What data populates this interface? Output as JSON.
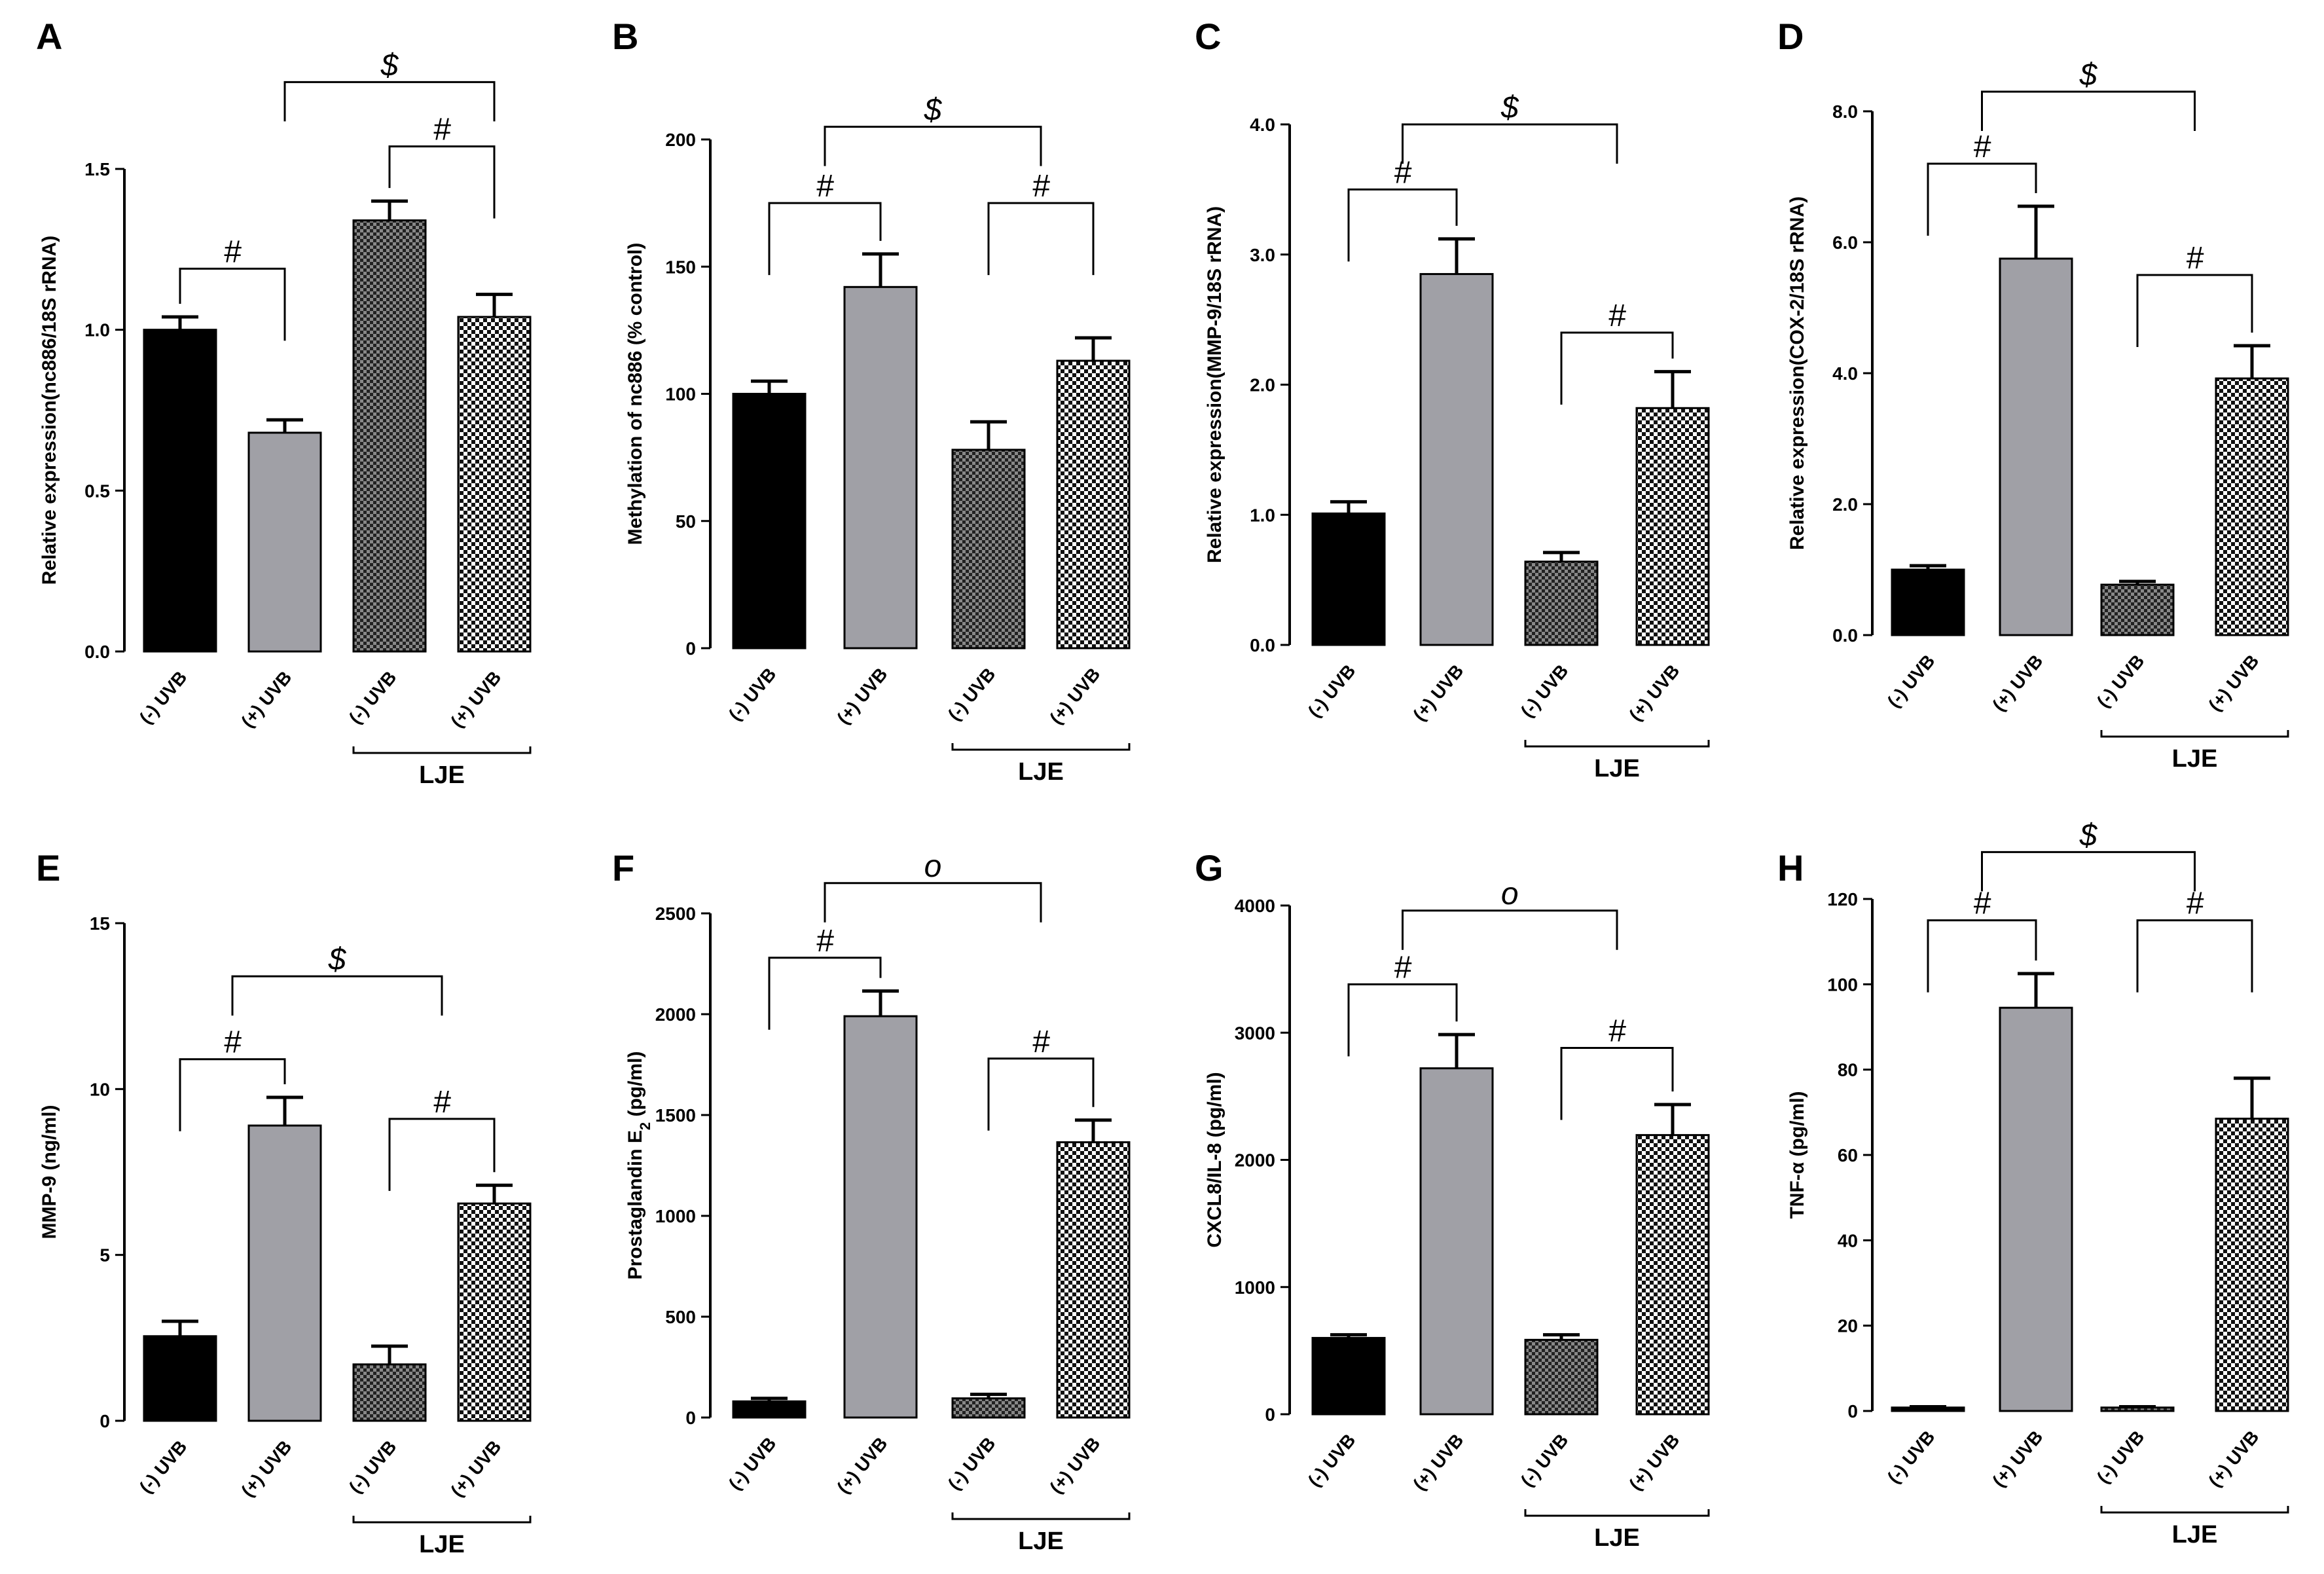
{
  "colors": {
    "black": "#000000",
    "gray": "#a0a0a6"
  },
  "chart_data": [
    {
      "letter": "A",
      "type": "bar",
      "ylabel": "Relative expression(nc886/18S rRNA)",
      "yticks": [
        "0.0",
        "0.5",
        "1.0",
        "1.5"
      ],
      "ylim": [
        0,
        1.5
      ],
      "categories": [
        "(-) UVB",
        "(+) UVB",
        "(-) UVB",
        "(+) UVB"
      ],
      "values": [
        1.0,
        0.68,
        1.34,
        1.04
      ],
      "errors": [
        0.04,
        0.04,
        0.06,
        0.07
      ],
      "group_label": "LJE",
      "annotations": [
        {
          "bars": [
            0,
            1
          ],
          "label": "#",
          "y": 1.19
        },
        {
          "bars": [
            2,
            3
          ],
          "label": "#",
          "y": 1.57
        },
        {
          "bars": [
            1,
            3
          ],
          "label": "$",
          "y": 1.77
        }
      ]
    },
    {
      "letter": "B",
      "type": "bar",
      "ylabel": "Methylation of nc886 (% control)",
      "yticks": [
        "0",
        "50",
        "100",
        "150",
        "200"
      ],
      "ylim": [
        0,
        200
      ],
      "categories": [
        "(-) UVB",
        "(+) UVB",
        "(-) UVB",
        "(+) UVB"
      ],
      "values": [
        100,
        142,
        78,
        113
      ],
      "errors": [
        5,
        13,
        11,
        9
      ],
      "group_label": "LJE",
      "annotations": [
        {
          "bars": [
            0,
            1
          ],
          "label": "#",
          "y": 175
        },
        {
          "bars": [
            2,
            3
          ],
          "label": "#",
          "y": 175
        },
        {
          "bars": [
            0.5,
            2.5
          ],
          "label": "$",
          "y": 205
        }
      ]
    },
    {
      "letter": "C",
      "type": "bar",
      "ylabel": "Relative expression(MMP-9/18S rRNA)",
      "yticks": [
        "0.0",
        "1.0",
        "2.0",
        "3.0",
        "4.0"
      ],
      "ylim": [
        0,
        4
      ],
      "categories": [
        "(-) UVB",
        "(+) UVB",
        "(-) UVB",
        "(+) UVB"
      ],
      "values": [
        1.01,
        2.85,
        0.64,
        1.82
      ],
      "errors": [
        0.09,
        0.27,
        0.07,
        0.28
      ],
      "group_label": "LJE",
      "annotations": [
        {
          "bars": [
            0,
            1
          ],
          "label": "#",
          "y": 3.5
        },
        {
          "bars": [
            2,
            3
          ],
          "label": "#",
          "y": 2.4
        },
        {
          "bars": [
            0.5,
            2.5
          ],
          "label": "$",
          "y": 4.0
        }
      ]
    },
    {
      "letter": "D",
      "type": "bar",
      "ylabel": "Relative expression(COX-2/18S rRNA)",
      "yticks": [
        "0.0",
        "2.0",
        "4.0",
        "6.0",
        "8.0"
      ],
      "ylim": [
        0,
        8
      ],
      "categories": [
        "(-) UVB",
        "(+) UVB",
        "(-) UVB",
        "(+) UVB"
      ],
      "values": [
        1.0,
        5.75,
        0.77,
        3.92
      ],
      "errors": [
        0.06,
        0.8,
        0.05,
        0.5
      ],
      "group_label": "LJE",
      "annotations": [
        {
          "bars": [
            0,
            1
          ],
          "label": "#",
          "y": 7.2
        },
        {
          "bars": [
            2,
            3
          ],
          "label": "#",
          "y": 5.5
        },
        {
          "bars": [
            0.5,
            2.5
          ],
          "label": "$",
          "y": 8.3
        }
      ]
    },
    {
      "letter": "E",
      "type": "bar",
      "ylabel": "MMP-9 (ng/ml)",
      "yticks": [
        "0",
        "5",
        "10",
        "15"
      ],
      "ylim": [
        0,
        15
      ],
      "categories": [
        "(-) UVB",
        "(+) UVB",
        "(-) UVB",
        "(+) UVB"
      ],
      "values": [
        2.55,
        8.9,
        1.7,
        6.55
      ],
      "errors": [
        0.45,
        0.85,
        0.55,
        0.55
      ],
      "group_label": "LJE",
      "annotations": [
        {
          "bars": [
            0,
            1
          ],
          "label": "#",
          "y": 10.9
        },
        {
          "bars": [
            2,
            3
          ],
          "label": "#",
          "y": 9.1
        },
        {
          "bars": [
            0.5,
            2.5
          ],
          "label": "$",
          "y": 13.4
        }
      ]
    },
    {
      "letter": "F",
      "type": "bar",
      "ylabel": "Prostaglandin E",
      "ylabel_sub": "2",
      "ylabel_tail": " (pg/ml)",
      "yticks": [
        "0",
        "500",
        "1000",
        "1500",
        "2000",
        "2500"
      ],
      "ylim": [
        0,
        2500
      ],
      "categories": [
        "(-) UVB",
        "(+) UVB",
        "(-) UVB",
        "(+) UVB"
      ],
      "values": [
        80,
        1990,
        95,
        1365
      ],
      "errors": [
        15,
        125,
        20,
        110
      ],
      "group_label": "LJE",
      "annotations": [
        {
          "bars": [
            0,
            1
          ],
          "label": "#",
          "y": 2280
        },
        {
          "bars": [
            2,
            3
          ],
          "label": "#",
          "y": 1780
        },
        {
          "bars": [
            0.5,
            2.5
          ],
          "label": "o",
          "y": 2650
        }
      ]
    },
    {
      "letter": "G",
      "type": "bar",
      "ylabel": "CXCL8/IL-8 (pg/ml)",
      "yticks": [
        "0",
        "1000",
        "2000",
        "3000",
        "4000"
      ],
      "ylim": [
        0,
        4000
      ],
      "categories": [
        "(-) UVB",
        "(+) UVB",
        "(-) UVB",
        "(+) UVB"
      ],
      "values": [
        600,
        2720,
        585,
        2195
      ],
      "errors": [
        25,
        265,
        40,
        240
      ],
      "group_label": "LJE",
      "annotations": [
        {
          "bars": [
            0,
            1
          ],
          "label": "#",
          "y": 3380
        },
        {
          "bars": [
            2,
            3
          ],
          "label": "#",
          "y": 2880
        },
        {
          "bars": [
            0.5,
            2.5
          ],
          "label": "o",
          "y": 3960
        }
      ]
    },
    {
      "letter": "H",
      "type": "bar",
      "ylabel": "TNF-α (pg/ml)",
      "yticks": [
        "0",
        "20",
        "40",
        "60",
        "80",
        "100",
        "120"
      ],
      "ylim": [
        0,
        120
      ],
      "categories": [
        "(-) UVB",
        "(+) UVB",
        "(-) UVB",
        "(+) UVB"
      ],
      "values": [
        0.8,
        94.5,
        0.8,
        68.5
      ],
      "errors": [
        0.2,
        8,
        0.2,
        9.5
      ],
      "group_label": "LJE",
      "annotations": [
        {
          "bars": [
            0,
            1
          ],
          "label": "#",
          "y": 115
        },
        {
          "bars": [
            2,
            3
          ],
          "label": "#",
          "y": 115
        },
        {
          "bars": [
            0.5,
            2.5
          ],
          "label": "$",
          "y": 131
        }
      ]
    }
  ]
}
